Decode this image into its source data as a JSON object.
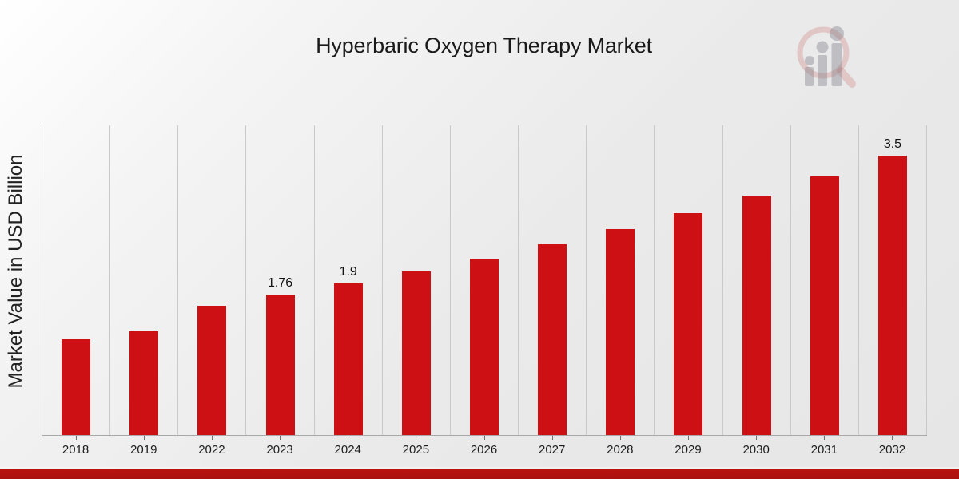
{
  "chart_data": {
    "type": "bar",
    "title": "Hyperbaric Oxygen Therapy Market",
    "xlabel": "",
    "ylabel": "Market Value in USD Billion",
    "unit": "USD Billion",
    "categories": [
      "2018",
      "2019",
      "2022",
      "2023",
      "2024",
      "2025",
      "2026",
      "2027",
      "2028",
      "2029",
      "2030",
      "2031",
      "2032"
    ],
    "values": [
      1.2,
      1.3,
      1.62,
      1.76,
      1.9,
      2.05,
      2.21,
      2.39,
      2.58,
      2.78,
      3.0,
      3.24,
      3.5
    ],
    "data_labels": {
      "2023": "1.76",
      "2024": "1.9",
      "2032": "3.5"
    },
    "ylim": [
      0,
      3.88
    ],
    "grid": "vertical-separators-on",
    "legend": "none",
    "bar_color": "#cd1013"
  },
  "colors": {
    "bar_red": "#cd1013",
    "bottom_strip_top": "#bb130f",
    "bottom_strip_bottom": "#a81110",
    "gridline": "#c9c9c9",
    "title_text": "#1a1a1a"
  },
  "watermark": {
    "icon": "magnifier-bar-chart-logo"
  }
}
